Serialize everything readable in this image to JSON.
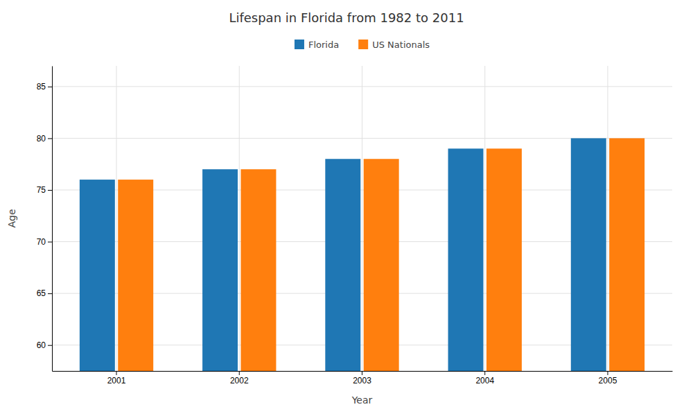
{
  "chart_data": {
    "type": "bar",
    "title": "Lifespan in Florida from 1982 to 2011",
    "xlabel": "Year",
    "ylabel": "Age",
    "categories": [
      "2001",
      "2002",
      "2003",
      "2004",
      "2005"
    ],
    "series": [
      {
        "name": "Florida",
        "values": [
          76,
          77,
          78,
          79,
          80
        ]
      },
      {
        "name": "US Nationals",
        "values": [
          76,
          77,
          78,
          79,
          80
        ]
      }
    ],
    "ylim": [
      57.5,
      87
    ],
    "yticks": [
      60,
      65,
      70,
      75,
      80,
      85
    ],
    "grid": true,
    "legend": "top"
  }
}
